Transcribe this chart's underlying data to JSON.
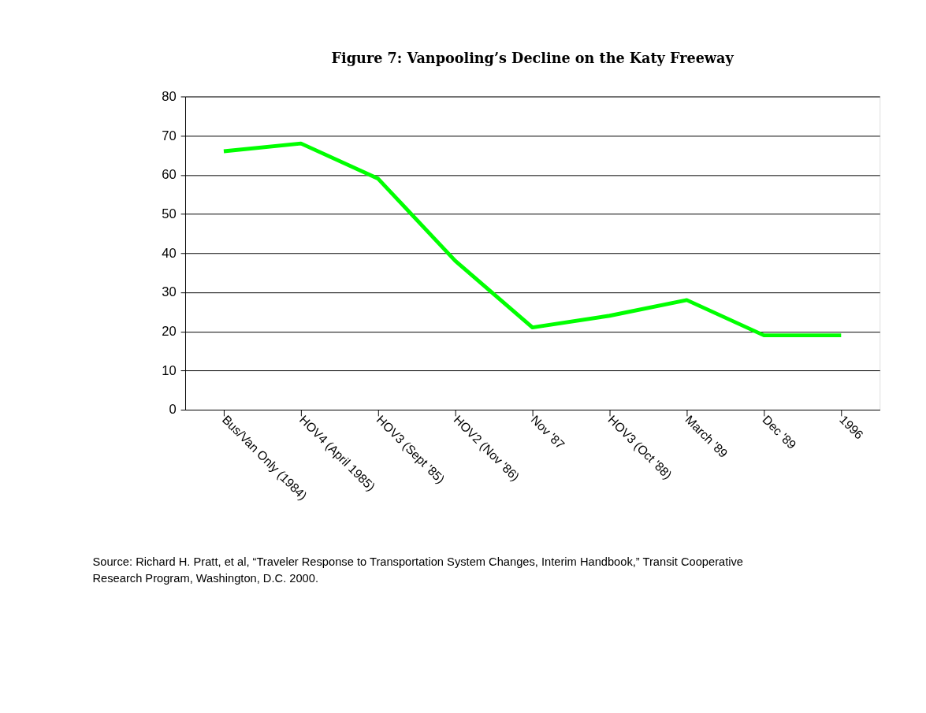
{
  "chart_data": {
    "type": "line",
    "title": "Figure 7: Vanpooling’s Decline on the Katy Freeway",
    "categories": [
      "Bus/Van Only (1984)",
      "HOV4 (April 1985)",
      "HOV3 (Sept '85)",
      "HOV2 (Nov '86)",
      "Nov '87",
      "HOV3 (Oct '88)",
      "March '89",
      "Dec '89",
      "1996"
    ],
    "series": [
      {
        "color": "#00ff00",
        "values": [
          66,
          68,
          59,
          38,
          21,
          24,
          28,
          19,
          19
        ]
      }
    ],
    "ylim": [
      0,
      80
    ],
    "yticks": [
      0,
      10,
      20,
      30,
      40,
      50,
      60,
      70,
      80
    ],
    "grid": "y",
    "marker": "none",
    "line_style": "solid",
    "annotations": [
      "Source: Richard H. Pratt, et al, “Traveler Response to Transportation System Changes, Interim Handbook,” Transit Cooperative Research Program, Washington, D.C. 2000."
    ]
  }
}
